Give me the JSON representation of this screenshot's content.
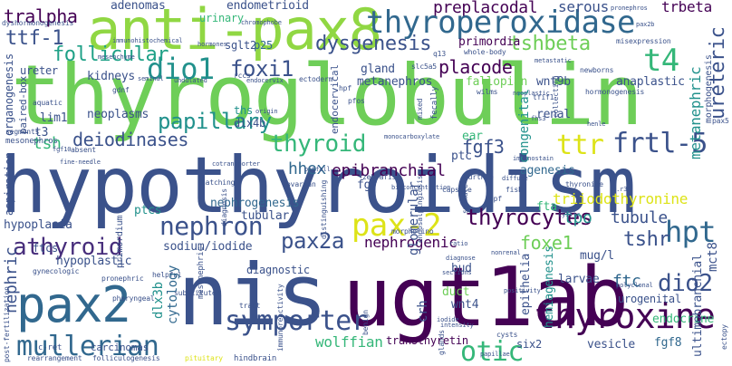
{
  "palette": {
    "dark_purple": "#440154",
    "indigo": "#3b528b",
    "blue": "#31688e",
    "teal": "#21918c",
    "green_teal": "#1fa187",
    "green": "#35b779",
    "light_green": "#6ece58",
    "lime": "#90d743",
    "yellow": "#b5de2b",
    "bright_yellow": "#dde318",
    "violet": "#472d7b"
  },
  "words": {
    "w001": {
      "text": "thyroglobulin",
      "color": "#6ece58"
    },
    "w002": {
      "text": "hypothyroidism",
      "color": "#3b528b"
    },
    "w003": {
      "text": "nis",
      "color": "#3b528b"
    },
    "w004": {
      "text": "ugt1ab",
      "color": "#440154"
    },
    "w005": {
      "text": "anti-pax8",
      "color": "#90d743"
    },
    "w006": {
      "text": "pax2",
      "color": "#31688e"
    },
    "w007": {
      "text": "thyroperoxidase",
      "color": "#31688e"
    },
    "w008": {
      "text": "dio1",
      "color": "#21918c"
    },
    "w009": {
      "text": "foxi1",
      "color": "#3b528b"
    },
    "w010": {
      "text": "t4",
      "color": "#35b779"
    },
    "w011": {
      "text": "thyroid",
      "color": "#35b779"
    },
    "w012": {
      "text": "ttr",
      "color": "#dde318"
    },
    "w013": {
      "text": "frtl-5",
      "color": "#3b528b"
    },
    "w014": {
      "text": "pax-2",
      "color": "#dde318"
    },
    "w015": {
      "text": "thyroxine",
      "color": "#440154"
    },
    "w016": {
      "text": "symporter",
      "color": "#3b528b"
    },
    "w017": {
      "text": "mullerian",
      "color": "#31688e"
    },
    "w018": {
      "text": "otic",
      "color": "#35b779"
    },
    "w019": {
      "text": "nephron",
      "color": "#3b528b"
    },
    "w020": {
      "text": "athyroid",
      "color": "#472d7b"
    },
    "w021": {
      "text": "hpt",
      "color": "#31688e"
    },
    "w022": {
      "text": "dio2",
      "color": "#3b528b"
    },
    "w023": {
      "text": "thyrocytes",
      "color": "#440154"
    },
    "w024": {
      "text": "papillary",
      "color": "#21918c"
    },
    "w025": {
      "text": "deiodinases",
      "color": "#3b528b"
    },
    "w026": {
      "text": "tsh",
      "color": "#35b779"
    },
    "w027": {
      "text": "follicular",
      "color": "#1fa187"
    },
    "w028": {
      "text": "ttf-1",
      "color": "#3b528b"
    },
    "w029": {
      "text": "tralpha",
      "color": "#440154"
    },
    "w030": {
      "text": "dysgenesis",
      "color": "#3b528b"
    },
    "w031": {
      "text": "tshbeta",
      "color": "#6ece58"
    },
    "w032": {
      "text": "placode",
      "color": "#440154"
    },
    "w033": {
      "text": "fgf3",
      "color": "#3b528b"
    },
    "w034": {
      "text": "epibranchial",
      "color": "#440154"
    },
    "w035": {
      "text": "hhex",
      "color": "#31688e"
    },
    "w036": {
      "text": "pax2a",
      "color": "#3b528b"
    },
    "w037": {
      "text": "nephrogenic",
      "color": "#440154"
    },
    "w038": {
      "text": "foxe1",
      "color": "#6ece58"
    },
    "w039": {
      "text": "tpo",
      "color": "#21918c"
    },
    "w040": {
      "text": "tubule",
      "color": "#3b528b"
    },
    "w041": {
      "text": "tshr",
      "color": "#3b528b"
    },
    "w042": {
      "text": "ftc",
      "color": "#31688e"
    },
    "w043": {
      "text": "triiodothyronine",
      "color": "#dde318"
    },
    "w044": {
      "text": "ureteric",
      "color": "#3b528b"
    },
    "w045": {
      "text": "metanephric",
      "color": "#21918c"
    },
    "w046": {
      "text": "preplacodal",
      "color": "#440154"
    },
    "w047": {
      "text": "serous",
      "color": "#3b528b"
    },
    "w048": {
      "text": "trbeta",
      "color": "#440154"
    },
    "w049": {
      "text": "adenomas",
      "color": "#3b528b"
    },
    "w050": {
      "text": "endometrioid",
      "color": "#3b528b"
    },
    "w051": {
      "text": "urinary",
      "color": "#35b779"
    },
    "w052": {
      "text": "sglt2",
      "color": "#3b528b"
    },
    "w053": {
      "text": "p25",
      "color": "#31688e"
    },
    "w054": {
      "text": "primordia",
      "color": "#440154"
    },
    "w055": {
      "text": "kidneys",
      "color": "#3b528b"
    },
    "w056": {
      "text": "gland",
      "color": "#3b528b"
    },
    "w057": {
      "text": "metanephros",
      "color": "#3b528b"
    },
    "w058": {
      "text": "fallopian",
      "color": "#6ece58"
    },
    "w059": {
      "text": "wnt9b",
      "color": "#3b528b"
    },
    "w060": {
      "text": "anaplastic",
      "color": "#3b528b"
    },
    "w061": {
      "text": "renal",
      "color": "#3b528b"
    },
    "w062": {
      "text": "congenital",
      "color": "#21918c"
    },
    "w063": {
      "text": "neoplasms",
      "color": "#3b528b"
    },
    "w064": {
      "text": "ths",
      "color": "#21918c"
    },
    "w065": {
      "text": "dlx4b",
      "color": "#3b528b"
    },
    "w066": {
      "text": "lim1",
      "color": "#3b528b"
    },
    "w067": {
      "text": "t3",
      "color": "#3b528b"
    },
    "w068": {
      "text": "ear",
      "color": "#35b779"
    },
    "w069": {
      "text": "ptc",
      "color": "#3b528b"
    },
    "w070": {
      "text": "agenesis",
      "color": "#31688e"
    },
    "w071": {
      "text": "fgf",
      "color": "#3b528b"
    },
    "w072": {
      "text": "glomerular",
      "color": "#3b528b"
    },
    "w073": {
      "text": "fta",
      "color": "#35b779"
    },
    "w074": {
      "text": "tubular",
      "color": "#3b528b"
    },
    "w075": {
      "text": "nephrogenesis",
      "color": "#31688e"
    },
    "w076": {
      "text": "ptcs",
      "color": "#21918c"
    },
    "w077": {
      "text": "hypoplasia",
      "color": "#3b528b"
    },
    "w078": {
      "text": "ftcs",
      "color": "#3b528b"
    },
    "w079": {
      "text": "hypoplastic",
      "color": "#3b528b"
    },
    "w080": {
      "text": "sodium/iodide",
      "color": "#3b528b"
    },
    "w081": {
      "text": "diagnostic",
      "color": "#3b528b"
    },
    "w082": {
      "text": "nephric",
      "color": "#3b528b"
    },
    "w083": {
      "text": "dlx3b",
      "color": "#21918c"
    },
    "w084": {
      "text": "cytology",
      "color": "#31688e"
    },
    "w085": {
      "text": "wolffian",
      "color": "#35b779"
    },
    "w086": {
      "text": "transthyretin",
      "color": "#440154"
    },
    "w087": {
      "text": "bud",
      "color": "#3b528b"
    },
    "w088": {
      "text": "duct",
      "color": "#6ece58"
    },
    "w089": {
      "text": "wnt4",
      "color": "#3b528b"
    },
    "w090": {
      "text": "crh",
      "color": "#3b528b"
    },
    "w091": {
      "text": "epithelia",
      "color": "#3b528b"
    },
    "w092": {
      "text": "hemiagenesis",
      "color": "#21918c"
    },
    "w093": {
      "text": "mug/l",
      "color": "#3b528b"
    },
    "w094": {
      "text": "urogenital",
      "color": "#3b528b"
    },
    "w095": {
      "text": "larvae",
      "color": "#3b528b"
    },
    "w096": {
      "text": "endocrine",
      "color": "#35b779"
    },
    "w097": {
      "text": "vesicle",
      "color": "#3b528b"
    },
    "w098": {
      "text": "fgf8",
      "color": "#31688e"
    },
    "w099": {
      "text": "six2",
      "color": "#3b528b"
    },
    "w100": {
      "text": "mct8",
      "color": "#3b528b"
    },
    "w101": {
      "text": "ultimobranchial",
      "color": "#3b528b"
    },
    "w102": {
      "text": "cysts",
      "color": "#3b528b"
    },
    "w103": {
      "text": "papillae",
      "color": "#3b528b"
    },
    "w104": {
      "text": "tract",
      "color": "#3b528b"
    },
    "w105": {
      "text": "c-ret",
      "color": "#3b528b"
    },
    "w106": {
      "text": "carcinomas",
      "color": "#3b528b"
    },
    "w107": {
      "text": "folliculogenesis",
      "color": "#3b528b"
    },
    "w108": {
      "text": "rearrangement",
      "color": "#3b528b"
    },
    "w109": {
      "text": "pituitary",
      "color": "#dde318"
    },
    "w110": {
      "text": "hindbrain",
      "color": "#3b528b"
    },
    "w111": {
      "text": "gynecologic",
      "color": "#3b528b"
    },
    "w112": {
      "text": "helpful",
      "color": "#3b528b"
    },
    "w113": {
      "text": "pronephric",
      "color": "#3b528b"
    },
    "w114": {
      "text": "pharyngeal",
      "color": "#3b528b"
    },
    "w115": {
      "text": "mesonephros",
      "color": "#3b528b"
    },
    "w116": {
      "text": "segments",
      "color": "#3b528b"
    },
    "w117": {
      "text": "aquatic",
      "color": "#3b528b"
    },
    "w118": {
      "text": "ureter",
      "color": "#3b528b"
    },
    "w119": {
      "text": "dyshormonogenesis",
      "color": "#3b528b"
    },
    "w120": {
      "text": "immunohistochemical",
      "color": "#3b528b"
    },
    "w121": {
      "text": "hormones",
      "color": "#3b528b"
    },
    "w122": {
      "text": "chromophobe",
      "color": "#3b528b"
    },
    "w123": {
      "text": "mesenchyme",
      "color": "#3b528b"
    },
    "w124": {
      "text": "gdnf",
      "color": "#3b528b"
    },
    "w125": {
      "text": "seminal",
      "color": "#3b528b"
    },
    "w126": {
      "text": "undulated",
      "color": "#3b528b"
    },
    "w127": {
      "text": "rccs",
      "color": "#3b528b"
    },
    "w128": {
      "text": "endocervix",
      "color": "#3b528b"
    },
    "w129": {
      "text": "ectoderm",
      "color": "#3b528b"
    },
    "w130": {
      "text": "whole-body",
      "color": "#3b528b"
    },
    "w131": {
      "text": "slc5a5",
      "color": "#3b528b"
    },
    "w132": {
      "text": "q13",
      "color": "#3b528b"
    },
    "w133": {
      "text": "hpf",
      "color": "#3b528b"
    },
    "w134": {
      "text": "pfos",
      "color": "#3b528b"
    },
    "w135": {
      "text": "wilms",
      "color": "#3b528b"
    },
    "w136": {
      "text": "metastatic",
      "color": "#3b528b"
    },
    "w137": {
      "text": "newborns",
      "color": "#3b528b"
    },
    "w138": {
      "text": "hormonogenesis",
      "color": "#3b528b"
    },
    "w139": {
      "text": "misexpression",
      "color": "#3b528b"
    },
    "w140": {
      "text": "pronephros",
      "color": "#3b528b"
    },
    "w141": {
      "text": "pax2b",
      "color": "#3b528b"
    },
    "w142": {
      "text": "henle",
      "color": "#3b528b"
    },
    "w143": {
      "text": "neoplastic",
      "color": "#3b528b"
    },
    "w144": {
      "text": "tfif1",
      "color": "#3b528b"
    },
    "w145": {
      "text": "monocarboxylate",
      "color": "#3b528b"
    },
    "w146": {
      "text": "immunostain",
      "color": "#3b528b"
    },
    "w147": {
      "text": "hurthle",
      "color": "#3b528b"
    },
    "w148": {
      "text": "diffuse",
      "color": "#3b528b"
    },
    "w149": {
      "text": "zebrafish",
      "color": "#3b528b"
    },
    "w150": {
      "text": "bioconcentration",
      "color": "#3b528b"
    },
    "w151": {
      "text": "ovarian",
      "color": "#3b528b"
    },
    "w152": {
      "text": "capsule",
      "color": "#3b528b"
    },
    "w153": {
      "text": "dpf",
      "color": "#3b528b"
    },
    "w154": {
      "text": "fish",
      "color": "#3b528b"
    },
    "w155": {
      "text": "cystic",
      "color": "#3b528b"
    },
    "w156": {
      "text": "thyronine",
      "color": "#3b528b"
    },
    "w157": {
      "text": "p.r3h",
      "color": "#3b528b"
    },
    "w158": {
      "text": "fine-needle",
      "color": "#3b528b"
    },
    "w159": {
      "text": "cotransporter",
      "color": "#3b528b"
    },
    "w160": {
      "text": "absent",
      "color": "#3b528b"
    },
    "w161": {
      "text": "fgf10",
      "color": "#3b528b"
    },
    "w162": {
      "text": "hatching",
      "color": "#3b528b"
    },
    "w163": {
      "text": "mesonephric",
      "color": "#3b528b"
    },
    "w164": {
      "text": "primordium",
      "color": "#3b528b"
    },
    "w165": {
      "text": "substituted",
      "color": "#3b528b"
    },
    "w166": {
      "text": "morpholino",
      "color": "#3b528b"
    },
    "w167": {
      "text": "diagnose",
      "color": "#3b528b"
    },
    "w168": {
      "text": "nonrenal",
      "color": "#3b528b"
    },
    "w169": {
      "text": "sections",
      "color": "#3b528b"
    },
    "w170": {
      "text": "positivity",
      "color": "#3b528b"
    },
    "w171": {
      "text": "polyclonal",
      "color": "#3b528b"
    },
    "w172": {
      "text": "benign",
      "color": "#3b528b"
    },
    "w173": {
      "text": "intensity",
      "color": "#3b528b"
    },
    "w174": {
      "text": "immunoreactivity",
      "color": "#3b528b"
    },
    "w175": {
      "text": "distinguishing",
      "color": "#3b528b"
    },
    "w176": {
      "text": "diagnosis",
      "color": "#3b528b"
    },
    "w177": {
      "text": "organogenesis",
      "color": "#3b528b"
    },
    "w178": {
      "text": "aspiration",
      "color": "#3b528b"
    },
    "w179": {
      "text": "paired-box",
      "color": "#3b528b"
    },
    "w180": {
      "text": "post-fertilization",
      "color": "#3b528b"
    },
    "w181": {
      "text": "ectopy",
      "color": "#3b528b"
    },
    "w182": {
      "text": "morphogenesis",
      "color": "#3b528b"
    },
    "w183": {
      "text": "endosalpingiosis",
      "color": "#3b528b"
    },
    "w184": {
      "text": "fecally",
      "color": "#3b528b"
    },
    "w185": {
      "text": "endocervical",
      "color": "#3b528b"
    },
    "w186": {
      "text": "mixed",
      "color": "#3b528b"
    },
    "w187": {
      "text": "pax5",
      "color": "#3b528b"
    },
    "w188": {
      "text": "pitfall",
      "color": "#3b528b"
    },
    "w189": {
      "text": "ratio",
      "color": "#3b528b"
    },
    "w190": {
      "text": "origin",
      "color": "#3b528b"
    },
    "w191": {
      "text": "collecting",
      "color": "#3b528b"
    },
    "w192": {
      "text": "fhs3",
      "color": "#3b528b"
    },
    "w193": {
      "text": "glands",
      "color": "#3b528b"
    },
    "w194": {
      "text": "spindle",
      "color": "#3b528b"
    },
    "w195": {
      "text": "iodide",
      "color": "#3b528b"
    }
  }
}
